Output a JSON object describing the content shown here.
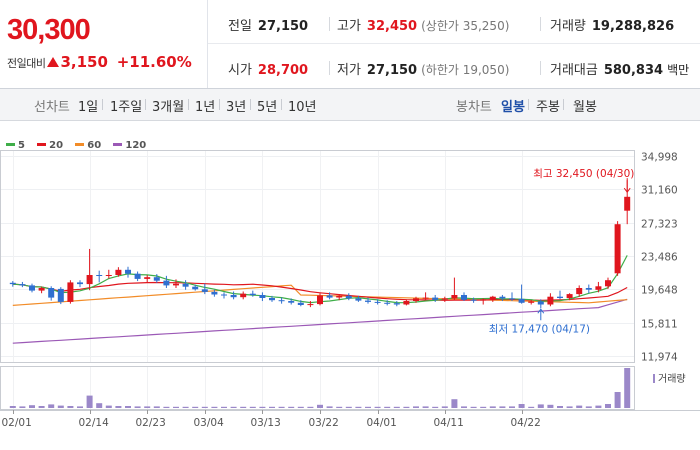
{
  "header": {
    "price": "30,300",
    "change_label": "전일대비",
    "change_value": "3,150",
    "change_pct": "+11.60%",
    "stats": [
      {
        "label": "전일",
        "value": "27,150",
        "sub": ""
      },
      {
        "label": "고가",
        "value": "32,450",
        "sub": "(상한가 35,250)"
      },
      {
        "label": "거래량",
        "value": "19,288,826",
        "sub": ""
      },
      {
        "label": "시가",
        "value": "28,700",
        "sub": ""
      },
      {
        "label": "저가",
        "value": "27,150",
        "sub": "(하한가 19,050)"
      },
      {
        "label": "거래대금",
        "value": "580,834",
        "sub": "백만"
      }
    ]
  },
  "toolbar": {
    "line_chart_label": "선차트",
    "periods": [
      "1일",
      "1주일",
      "3개월",
      "1년",
      "3년",
      "5년",
      "10년"
    ],
    "candle_label": "봉차트",
    "candle_periods": [
      "일봉",
      "주봉",
      "월봉"
    ],
    "active_candle": "일봉"
  },
  "legend": [
    {
      "label": "5",
      "color": "#3fae49"
    },
    {
      "label": "20",
      "color": "#e0161e"
    },
    {
      "label": "60",
      "color": "#f28c28"
    },
    {
      "label": "120",
      "color": "#9b59b6"
    }
  ],
  "chart_data": {
    "type": "candlestick",
    "ylim": [
      11974,
      34998
    ],
    "y_ticks": [
      "34,998",
      "31,160",
      "27,323",
      "23,486",
      "19,648",
      "15,811",
      "11,974"
    ],
    "x_ticks": [
      "02/01",
      "02/14",
      "02/23",
      "03/04",
      "03/13",
      "03/22",
      "04/01",
      "04/11",
      "04/22"
    ],
    "volume_label": "거래량",
    "annotations": {
      "high": {
        "label": "최고 32,450 (04/30)",
        "value": 32450
      },
      "low": {
        "label": "최저 17,470 (04/17)",
        "value": 17470
      }
    },
    "colors": {
      "up": "#e0161e",
      "down": "#2f6fd0"
    },
    "candles": [
      [
        20400,
        20600,
        19950,
        20250
      ],
      [
        20250,
        20500,
        19900,
        20100
      ],
      [
        20100,
        20300,
        19300,
        19500
      ],
      [
        19500,
        19950,
        19200,
        19800
      ],
      [
        19800,
        20000,
        18350,
        18700
      ],
      [
        19700,
        19900,
        17950,
        18200
      ],
      [
        18200,
        20700,
        18000,
        20450
      ],
      [
        20450,
        20700,
        19900,
        20250
      ],
      [
        20250,
        24300,
        19550,
        21300
      ],
      [
        21300,
        21800,
        20450,
        21200
      ],
      [
        21200,
        21900,
        20900,
        21300
      ],
      [
        21300,
        22200,
        21100,
        21900
      ],
      [
        21900,
        22250,
        21000,
        21450
      ],
      [
        21450,
        21700,
        20600,
        20850
      ],
      [
        20850,
        21300,
        20400,
        21050
      ],
      [
        21050,
        21400,
        20400,
        20650
      ],
      [
        20650,
        21200,
        19800,
        20100
      ],
      [
        20100,
        20800,
        19800,
        20300
      ],
      [
        20300,
        20700,
        19600,
        19950
      ],
      [
        19950,
        20200,
        19500,
        19650
      ],
      [
        19650,
        20300,
        19100,
        19350
      ],
      [
        19350,
        19600,
        18800,
        19050
      ],
      [
        19050,
        19300,
        18600,
        19000
      ],
      [
        19000,
        19400,
        18500,
        18750
      ],
      [
        18750,
        19400,
        18500,
        19150
      ],
      [
        19150,
        19500,
        18800,
        19000
      ],
      [
        19000,
        19300,
        18300,
        18650
      ],
      [
        18650,
        18900,
        18200,
        18400
      ],
      [
        18400,
        18700,
        18000,
        18300
      ],
      [
        18300,
        18600,
        17900,
        18100
      ],
      [
        18100,
        18400,
        17700,
        17850
      ],
      [
        17850,
        18300,
        17600,
        17950
      ],
      [
        17950,
        19200,
        17800,
        18950
      ],
      [
        18950,
        19300,
        18500,
        18700
      ],
      [
        18700,
        19100,
        18400,
        18900
      ],
      [
        18900,
        19200,
        18400,
        18600
      ],
      [
        18600,
        18900,
        18200,
        18350
      ],
      [
        18350,
        18700,
        18000,
        18200
      ],
      [
        18200,
        18500,
        17900,
        18100
      ],
      [
        18100,
        18400,
        17800,
        18050
      ],
      [
        18050,
        18300,
        17700,
        17900
      ],
      [
        17900,
        18500,
        17800,
        18300
      ],
      [
        18300,
        18800,
        18100,
        18600
      ],
      [
        18600,
        19300,
        18400,
        18700
      ],
      [
        18700,
        19000,
        18200,
        18450
      ],
      [
        18450,
        18800,
        18200,
        18600
      ],
      [
        18600,
        21000,
        18400,
        19000
      ],
      [
        19000,
        19300,
        18300,
        18450
      ],
      [
        18450,
        18700,
        18100,
        18350
      ],
      [
        18350,
        18600,
        17900,
        18500
      ],
      [
        18500,
        18900,
        18200,
        18800
      ],
      [
        18800,
        19000,
        18300,
        18600
      ],
      [
        18600,
        19300,
        18300,
        18550
      ],
      [
        18550,
        20200,
        18000,
        18100
      ],
      [
        18100,
        18400,
        17900,
        18250
      ],
      [
        18250,
        18500,
        17470,
        17900
      ],
      [
        17900,
        19200,
        17700,
        18800
      ],
      [
        18800,
        19500,
        18500,
        18650
      ],
      [
        18650,
        19200,
        18400,
        19100
      ],
      [
        19100,
        20100,
        18800,
        19800
      ],
      [
        19800,
        20200,
        19200,
        19600
      ],
      [
        19600,
        20500,
        19300,
        20000
      ],
      [
        20000,
        21000,
        19700,
        20700
      ],
      [
        21500,
        27500,
        21200,
        27150
      ],
      [
        28700,
        32450,
        27150,
        30300
      ]
    ],
    "volume": [
      0.05,
      0.04,
      0.07,
      0.05,
      0.09,
      0.06,
      0.05,
      0.04,
      0.31,
      0.12,
      0.06,
      0.05,
      0.05,
      0.04,
      0.04,
      0.04,
      0.03,
      0.03,
      0.03,
      0.03,
      0.03,
      0.03,
      0.03,
      0.03,
      0.03,
      0.03,
      0.03,
      0.03,
      0.03,
      0.03,
      0.03,
      0.03,
      0.08,
      0.04,
      0.03,
      0.03,
      0.03,
      0.03,
      0.03,
      0.03,
      0.03,
      0.03,
      0.04,
      0.04,
      0.03,
      0.04,
      0.22,
      0.04,
      0.03,
      0.03,
      0.04,
      0.04,
      0.04,
      0.1,
      0.03,
      0.09,
      0.08,
      0.05,
      0.04,
      0.06,
      0.04,
      0.06,
      0.1,
      0.4,
      1.0
    ]
  }
}
